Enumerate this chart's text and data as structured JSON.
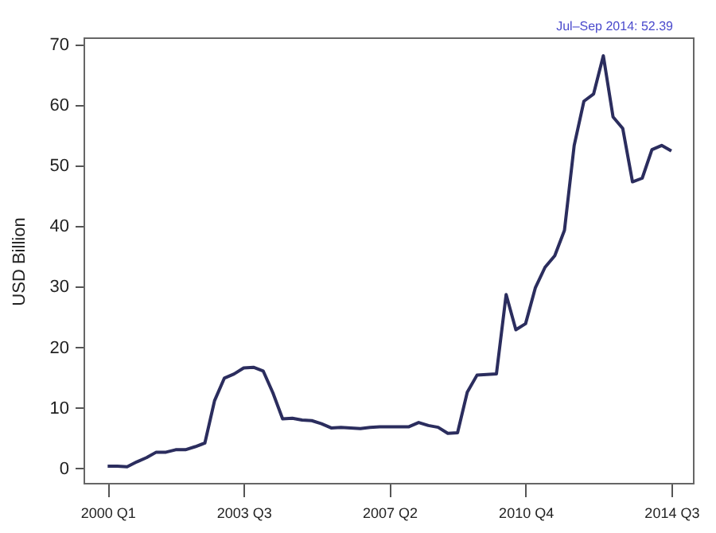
{
  "chart_data": {
    "type": "line",
    "ylabel": "USD Billion",
    "annotations": [
      "Jul–Sep 2014: 52.39"
    ],
    "categories": [
      "2000 Q1",
      null,
      null,
      null,
      null,
      null,
      null,
      null,
      null,
      null,
      null,
      null,
      null,
      null,
      "2003 Q3",
      null,
      null,
      null,
      null,
      null,
      null,
      null,
      null,
      null,
      null,
      null,
      null,
      null,
      null,
      "2007 Q2",
      null,
      null,
      null,
      null,
      null,
      null,
      null,
      null,
      null,
      null,
      null,
      null,
      null,
      "2010 Q4",
      null,
      null,
      null,
      null,
      null,
      null,
      null,
      null,
      null,
      null,
      null,
      null,
      null,
      null,
      "2014 Q3"
    ],
    "series": [
      {
        "color": "#2b2d5e",
        "values": [
          0.4,
          0.4,
          0.3,
          1.1,
          1.8,
          2.7,
          2.7,
          3.1,
          3.1,
          3.6,
          4.2,
          11.2,
          14.9,
          15.6,
          16.6,
          16.7,
          16.1,
          12.5,
          8.2,
          8.3,
          8.0,
          7.9,
          7.4,
          6.7,
          6.8,
          6.7,
          6.6,
          6.8,
          6.9,
          6.9,
          6.9,
          6.9,
          7.6,
          7.1,
          6.8,
          5.8,
          5.9,
          12.6,
          15.4,
          15.5,
          15.6,
          28.7,
          22.9,
          23.9,
          29.8,
          33.2,
          35.1,
          39.3,
          53.3,
          60.6,
          61.8,
          68.1,
          58.0,
          56.1,
          47.3,
          47.9,
          52.6,
          53.3,
          52.39
        ]
      }
    ],
    "ylim": [
      -2.5,
      71
    ],
    "yticks": [
      0,
      10,
      20,
      30,
      40,
      50,
      60,
      70
    ],
    "grid": false,
    "legend": false
  }
}
